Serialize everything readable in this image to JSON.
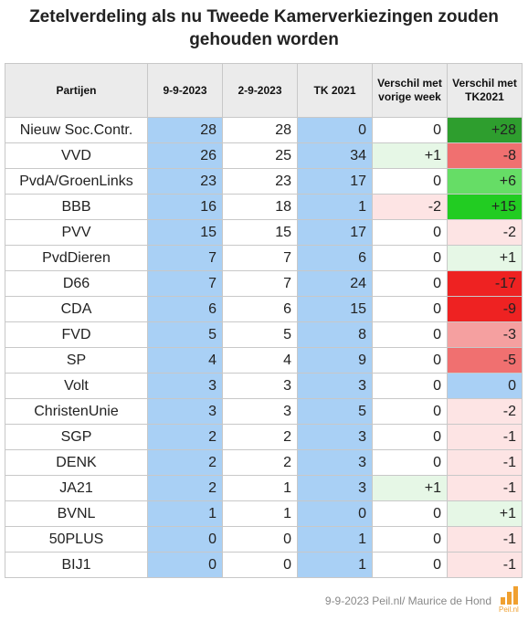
{
  "title": "Zetelverdeling als nu Tweede Kamerverkiezingen zouden gehouden worden",
  "footer": "9-9-2023 Peil.nl/ Maurice de Hond",
  "logo_text": "Peil.nl",
  "colors": {
    "blue": "#a9d0f5",
    "pos_strong": "#2e9e2e",
    "pos_bright": "#22cc22",
    "pos_mid": "#66dd66",
    "pos_light": "#e6f7e6",
    "neutral": "#a9d0f5",
    "neg_light": "#fde4e4",
    "neg_soft": "#f5a0a0",
    "neg_mid": "#f07070",
    "neg_strong": "#ee2222"
  },
  "chart_data": {
    "type": "table",
    "title": "Zetelverdeling als nu Tweede Kamerverkiezingen zouden gehouden worden",
    "columns": [
      "Partijen",
      "9-9-2023",
      "2-9-2023",
      "TK 2021",
      "Verschil met vorige week",
      "Verschil met TK2021"
    ],
    "rows": [
      {
        "party": "Nieuw Soc.Contr.",
        "cur": "28",
        "prev": "28",
        "tk": "0",
        "dweek": "0",
        "dtk": "+28"
      },
      {
        "party": "VVD",
        "cur": "26",
        "prev": "25",
        "tk": "34",
        "dweek": "+1",
        "dtk": "-8"
      },
      {
        "party": "PvdA/GroenLinks",
        "cur": "23",
        "prev": "23",
        "tk": "17",
        "dweek": "0",
        "dtk": "+6"
      },
      {
        "party": "BBB",
        "cur": "16",
        "prev": "18",
        "tk": "1",
        "dweek": "-2",
        "dtk": "+15"
      },
      {
        "party": "PVV",
        "cur": "15",
        "prev": "15",
        "tk": "17",
        "dweek": "0",
        "dtk": "-2"
      },
      {
        "party": "PvdDieren",
        "cur": "7",
        "prev": "7",
        "tk": "6",
        "dweek": "0",
        "dtk": "+1"
      },
      {
        "party": "D66",
        "cur": "7",
        "prev": "7",
        "tk": "24",
        "dweek": "0",
        "dtk": "-17"
      },
      {
        "party": "CDA",
        "cur": "6",
        "prev": "6",
        "tk": "15",
        "dweek": "0",
        "dtk": "-9"
      },
      {
        "party": "FVD",
        "cur": "5",
        "prev": "5",
        "tk": "8",
        "dweek": "0",
        "dtk": "-3"
      },
      {
        "party": "SP",
        "cur": "4",
        "prev": "4",
        "tk": "9",
        "dweek": "0",
        "dtk": "-5"
      },
      {
        "party": "Volt",
        "cur": "3",
        "prev": "3",
        "tk": "3",
        "dweek": "0",
        "dtk": "0"
      },
      {
        "party": "ChristenUnie",
        "cur": "3",
        "prev": "3",
        "tk": "5",
        "dweek": "0",
        "dtk": "-2"
      },
      {
        "party": "SGP",
        "cur": "2",
        "prev": "2",
        "tk": "3",
        "dweek": "0",
        "dtk": "-1"
      },
      {
        "party": "DENK",
        "cur": "2",
        "prev": "2",
        "tk": "3",
        "dweek": "0",
        "dtk": "-1"
      },
      {
        "party": "JA21",
        "cur": "2",
        "prev": "1",
        "tk": "3",
        "dweek": "+1",
        "dtk": "-1"
      },
      {
        "party": "BVNL",
        "cur": "1",
        "prev": "1",
        "tk": "0",
        "dweek": "0",
        "dtk": "+1"
      },
      {
        "party": "50PLUS",
        "cur": "0",
        "prev": "0",
        "tk": "1",
        "dweek": "0",
        "dtk": "-1"
      },
      {
        "party": "BIJ1",
        "cur": "0",
        "prev": "0",
        "tk": "1",
        "dweek": "0",
        "dtk": "-1"
      }
    ]
  }
}
